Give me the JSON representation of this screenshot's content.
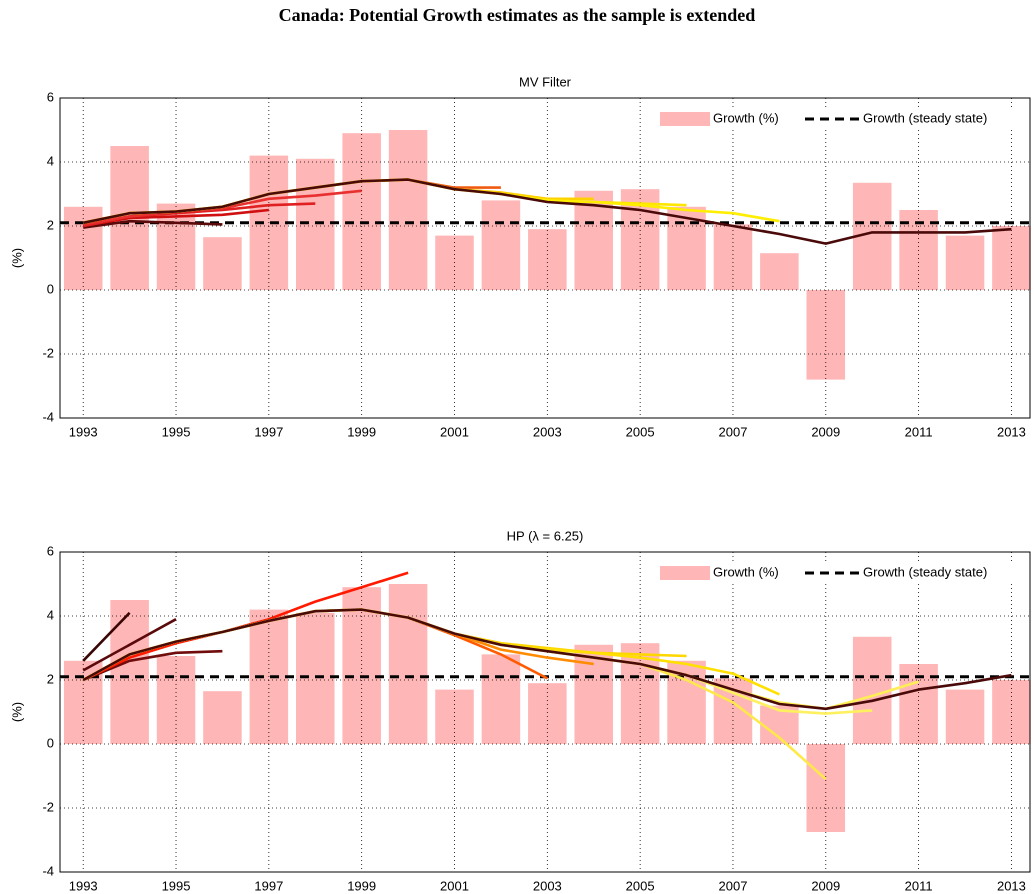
{
  "title": "Canada: Potential Growth estimates as the sample is extended",
  "chart_data": [
    {
      "type": "combo",
      "title": "MV Filter",
      "ylabel": "(%)",
      "x": [
        1993,
        1994,
        1995,
        1996,
        1997,
        1998,
        1999,
        2000,
        2001,
        2002,
        2003,
        2004,
        2005,
        2006,
        2007,
        2008,
        2009,
        2010,
        2011,
        2012,
        2013
      ],
      "xlim": [
        1992.5,
        2013.4
      ],
      "xticks": [
        1993,
        1995,
        1997,
        1999,
        2001,
        2003,
        2005,
        2007,
        2009,
        2011,
        2013
      ],
      "ylim": [
        -4,
        6
      ],
      "yticks": [
        -4,
        -2,
        0,
        2,
        4,
        6
      ],
      "grid": true,
      "legend": "upper right",
      "bars": {
        "name": "Growth (%)",
        "color": "#ffb6b6",
        "values": [
          2.6,
          4.5,
          2.7,
          1.65,
          4.2,
          4.1,
          4.9,
          5.0,
          1.7,
          2.8,
          1.9,
          3.1,
          3.15,
          2.6,
          2.05,
          1.15,
          -2.8,
          3.35,
          2.5,
          1.7,
          2.0
        ]
      },
      "steady_state": {
        "name": "Growth (steady state)",
        "color": "#000000",
        "value": 2.1
      },
      "series": [
        {
          "color": "#5a0a0a",
          "values": [
            1.95,
            2.15,
            2.1,
            2.05,
            null,
            null,
            null,
            null,
            null,
            null,
            null,
            null,
            null,
            null,
            null,
            null,
            null,
            null,
            null,
            null,
            null
          ]
        },
        {
          "color": "#d01010",
          "values": [
            2.0,
            2.25,
            2.3,
            2.35,
            2.5,
            null,
            null,
            null,
            null,
            null,
            null,
            null,
            null,
            null,
            null,
            null,
            null,
            null,
            null,
            null,
            null
          ]
        },
        {
          "color": "#e02020",
          "values": [
            2.0,
            2.3,
            2.4,
            2.5,
            2.65,
            2.7,
            null,
            null,
            null,
            null,
            null,
            null,
            null,
            null,
            null,
            null,
            null,
            null,
            null,
            null,
            null
          ]
        },
        {
          "color": "#e83030",
          "values": [
            2.05,
            2.3,
            2.45,
            2.55,
            2.85,
            2.95,
            3.1,
            null,
            null,
            null,
            null,
            null,
            null,
            null,
            null,
            null,
            null,
            null,
            null,
            null,
            null
          ]
        },
        {
          "color": "#f05a10",
          "values": [
            2.1,
            2.4,
            2.45,
            2.6,
            3.0,
            3.2,
            3.4,
            3.45,
            3.2,
            3.2,
            null,
            null,
            null,
            null,
            null,
            null,
            null,
            null,
            null,
            null,
            null
          ]
        },
        {
          "color": "#ffd000",
          "values": [
            2.1,
            2.4,
            2.45,
            2.6,
            3.0,
            3.2,
            3.4,
            3.45,
            3.15,
            3.05,
            2.85,
            2.85,
            null,
            null,
            null,
            null,
            null,
            null,
            null,
            null,
            null
          ]
        },
        {
          "color": "#ffe600",
          "values": [
            2.1,
            2.4,
            2.45,
            2.6,
            3.0,
            3.2,
            3.4,
            3.45,
            3.15,
            3.0,
            2.8,
            2.75,
            2.7,
            2.65,
            null,
            null,
            null,
            null,
            null,
            null,
            null
          ]
        },
        {
          "color": "#ffee00",
          "values": [
            2.1,
            2.4,
            2.45,
            2.6,
            3.0,
            3.2,
            3.4,
            3.45,
            3.15,
            3.0,
            2.8,
            2.75,
            2.65,
            2.5,
            2.4,
            2.15,
            null,
            null,
            null,
            null,
            null
          ]
        },
        {
          "color": "#4a0a0a",
          "values": [
            2.1,
            2.4,
            2.45,
            2.6,
            3.0,
            3.2,
            3.4,
            3.45,
            3.15,
            3.0,
            2.75,
            2.65,
            2.5,
            2.25,
            2.0,
            1.75,
            1.45,
            1.8,
            1.8,
            1.8,
            1.9
          ]
        }
      ]
    },
    {
      "type": "combo",
      "title": "HP (λ = 6.25)",
      "ylabel": "(%)",
      "x": [
        1993,
        1994,
        1995,
        1996,
        1997,
        1998,
        1999,
        2000,
        2001,
        2002,
        2003,
        2004,
        2005,
        2006,
        2007,
        2008,
        2009,
        2010,
        2011,
        2012,
        2013
      ],
      "xlim": [
        1992.5,
        2013.4
      ],
      "xticks": [
        1993,
        1995,
        1997,
        1999,
        2001,
        2003,
        2005,
        2007,
        2009,
        2011,
        2013
      ],
      "ylim": [
        -4,
        6
      ],
      "yticks": [
        -4,
        -2,
        0,
        2,
        4,
        6
      ],
      "grid": true,
      "legend": "upper right",
      "bars": {
        "name": "Growth (%)",
        "color": "#ffb6b6",
        "values": [
          2.6,
          4.5,
          2.75,
          1.65,
          4.2,
          4.1,
          4.9,
          5.0,
          1.7,
          2.8,
          1.9,
          3.1,
          3.15,
          2.6,
          2.05,
          1.2,
          -2.75,
          3.35,
          2.5,
          1.7,
          2.0
        ]
      },
      "steady_state": {
        "name": "Growth (steady state)",
        "color": "#000000",
        "value": 2.1
      },
      "series": [
        {
          "color": "#3a0505",
          "values": [
            2.6,
            4.1,
            null,
            null,
            null,
            null,
            null,
            null,
            null,
            null,
            null,
            null,
            null,
            null,
            null,
            null,
            null,
            null,
            null,
            null,
            null
          ]
        },
        {
          "color": "#5a0a0a",
          "values": [
            2.3,
            3.1,
            3.9,
            null,
            null,
            null,
            null,
            null,
            null,
            null,
            null,
            null,
            null,
            null,
            null,
            null,
            null,
            null,
            null,
            null,
            null
          ]
        },
        {
          "color": "#700c0c",
          "values": [
            2.0,
            2.6,
            2.85,
            2.9,
            null,
            null,
            null,
            null,
            null,
            null,
            null,
            null,
            null,
            null,
            null,
            null,
            null,
            null,
            null,
            null,
            null
          ]
        },
        {
          "color": "#ff1a00",
          "values": [
            2.0,
            2.7,
            3.15,
            3.5,
            3.9,
            4.45,
            4.9,
            5.35,
            null,
            null,
            null,
            null,
            null,
            null,
            null,
            null,
            null,
            null,
            null,
            null,
            null
          ]
        },
        {
          "color": "#ff5a00",
          "values": [
            2.0,
            2.8,
            3.2,
            3.5,
            3.85,
            4.15,
            4.2,
            3.95,
            3.4,
            2.8,
            2.05,
            null,
            null,
            null,
            null,
            null,
            null,
            null,
            null,
            null,
            null
          ]
        },
        {
          "color": "#ff8c00",
          "values": [
            2.0,
            2.8,
            3.2,
            3.5,
            3.85,
            4.15,
            4.2,
            3.95,
            3.45,
            2.95,
            2.7,
            2.5,
            null,
            null,
            null,
            null,
            null,
            null,
            null,
            null,
            null
          ]
        },
        {
          "color": "#ffd700",
          "values": [
            2.0,
            2.8,
            3.2,
            3.5,
            3.85,
            4.15,
            4.2,
            3.95,
            3.45,
            3.15,
            3.0,
            2.85,
            2.8,
            2.75,
            null,
            null,
            null,
            null,
            null,
            null,
            null
          ]
        },
        {
          "color": "#ffe000",
          "values": [
            2.0,
            2.8,
            3.2,
            3.5,
            3.85,
            4.15,
            4.2,
            3.95,
            3.45,
            3.1,
            2.95,
            2.85,
            2.7,
            2.5,
            2.2,
            1.55,
            null,
            null,
            null,
            null,
            null
          ]
        },
        {
          "color": "#ffe84a",
          "values": [
            2.0,
            2.8,
            3.2,
            3.5,
            3.85,
            4.15,
            4.2,
            3.95,
            3.45,
            3.1,
            2.9,
            2.7,
            2.5,
            2.0,
            1.3,
            0.2,
            -1.1,
            null,
            null,
            null,
            null
          ]
        },
        {
          "color": "#fff060",
          "values": [
            2.0,
            2.8,
            3.2,
            3.5,
            3.85,
            4.15,
            4.2,
            3.95,
            3.45,
            3.1,
            2.9,
            2.7,
            2.5,
            2.15,
            1.6,
            1.05,
            0.95,
            1.05,
            null,
            null,
            null
          ]
        },
        {
          "color": "#ffee55",
          "values": [
            2.0,
            2.8,
            3.2,
            3.5,
            3.85,
            4.15,
            4.2,
            3.95,
            3.45,
            3.1,
            2.9,
            2.7,
            2.5,
            2.15,
            1.7,
            1.3,
            1.1,
            1.5,
            1.95,
            null,
            null
          ]
        },
        {
          "color": "#4a0a0a",
          "values": [
            2.0,
            2.8,
            3.2,
            3.5,
            3.85,
            4.15,
            4.2,
            3.95,
            3.45,
            3.1,
            2.9,
            2.7,
            2.5,
            2.15,
            1.7,
            1.25,
            1.1,
            1.35,
            1.7,
            1.9,
            2.15
          ]
        }
      ]
    }
  ]
}
